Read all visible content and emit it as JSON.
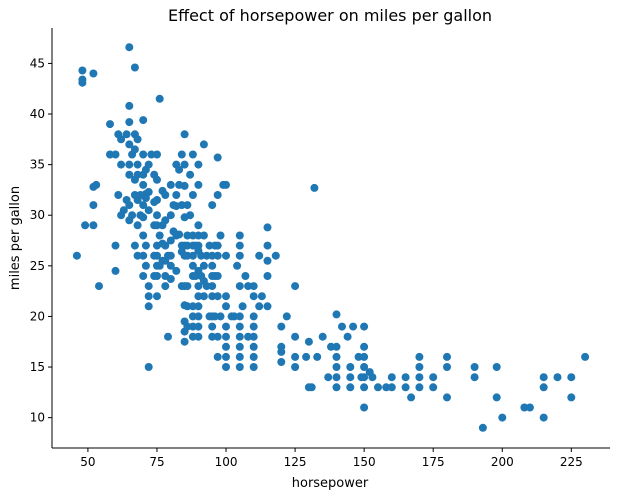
{
  "chart_data": {
    "type": "scatter",
    "title": "Effect of horsepower on miles per gallon",
    "xlabel": "horsepower",
    "ylabel": "miles per gallon",
    "xlim": [
      37,
      239
    ],
    "ylim": [
      7,
      48.5
    ],
    "xticks": [
      50,
      75,
      100,
      125,
      150,
      175,
      200,
      225
    ],
    "yticks": [
      10,
      15,
      20,
      25,
      30,
      35,
      40,
      45
    ],
    "grid": false,
    "color": "#1f77b4",
    "series": [
      {
        "points": [
          [
            46,
            26
          ],
          [
            48,
            44.3
          ],
          [
            48,
            43.4
          ],
          [
            48,
            43.1
          ],
          [
            49,
            29
          ],
          [
            52,
            44
          ],
          [
            52,
            29
          ],
          [
            52,
            31
          ],
          [
            52,
            32.8
          ],
          [
            53,
            33
          ],
          [
            54,
            23
          ],
          [
            58,
            36
          ],
          [
            58,
            39
          ],
          [
            60,
            36
          ],
          [
            60,
            27
          ],
          [
            60,
            24.5
          ],
          [
            61,
            38
          ],
          [
            61,
            32
          ],
          [
            62,
            37.5
          ],
          [
            62,
            35
          ],
          [
            62,
            30
          ],
          [
            63,
            30.5
          ],
          [
            64,
            31.5
          ],
          [
            64,
            38
          ],
          [
            65,
            46.6
          ],
          [
            65,
            40.8
          ],
          [
            65,
            39.2
          ],
          [
            65,
            37
          ],
          [
            65,
            35
          ],
          [
            65,
            31
          ],
          [
            65,
            29.5
          ],
          [
            65,
            34
          ],
          [
            66,
            30
          ],
          [
            66,
            36
          ],
          [
            67,
            44.6
          ],
          [
            67,
            38
          ],
          [
            67,
            33.5
          ],
          [
            67,
            32
          ],
          [
            67,
            36.5
          ],
          [
            67,
            27
          ],
          [
            68,
            37.5
          ],
          [
            68,
            35
          ],
          [
            68,
            34
          ],
          [
            68,
            31.5
          ],
          [
            68,
            29
          ],
          [
            68,
            26
          ],
          [
            69,
            32
          ],
          [
            69,
            30
          ],
          [
            70,
            39.4
          ],
          [
            70,
            36
          ],
          [
            70,
            34
          ],
          [
            70,
            33
          ],
          [
            70,
            31
          ],
          [
            70,
            29.8
          ],
          [
            70,
            28
          ],
          [
            70,
            26
          ],
          [
            70,
            24
          ],
          [
            71,
            34.5
          ],
          [
            71,
            31.7
          ],
          [
            71,
            27
          ],
          [
            71,
            25
          ],
          [
            71,
            32.1
          ],
          [
            72,
            35
          ],
          [
            72,
            32.3
          ],
          [
            72,
            30.5
          ],
          [
            72,
            23
          ],
          [
            72,
            22
          ],
          [
            72,
            21
          ],
          [
            72,
            15
          ],
          [
            73,
            36
          ],
          [
            74,
            34
          ],
          [
            74,
            31.3
          ],
          [
            74,
            29
          ],
          [
            74,
            26
          ],
          [
            74,
            24
          ],
          [
            75,
            36
          ],
          [
            75,
            33.5
          ],
          [
            75,
            31.5
          ],
          [
            75,
            30
          ],
          [
            75,
            29
          ],
          [
            75,
            27
          ],
          [
            75,
            26
          ],
          [
            75,
            25
          ],
          [
            75,
            24
          ],
          [
            75,
            22
          ],
          [
            76,
            41.5
          ],
          [
            76,
            28
          ],
          [
            76,
            25
          ],
          [
            77,
            32.4
          ],
          [
            77,
            29
          ],
          [
            77,
            27.2
          ],
          [
            77,
            25.5
          ],
          [
            78,
            32
          ],
          [
            78,
            29.5
          ],
          [
            78,
            27
          ],
          [
            78,
            25.5
          ],
          [
            78,
            24
          ],
          [
            78,
            23
          ],
          [
            79,
            26
          ],
          [
            79,
            18
          ],
          [
            80,
            33
          ],
          [
            80,
            30
          ],
          [
            80,
            27.5
          ],
          [
            80,
            26
          ],
          [
            80,
            25
          ],
          [
            80,
            23.7
          ],
          [
            81,
            31
          ],
          [
            81,
            28.4
          ],
          [
            82,
            35
          ],
          [
            82,
            32
          ],
          [
            82,
            30.9
          ],
          [
            82,
            28
          ],
          [
            82,
            24.5
          ],
          [
            83,
            34.5
          ],
          [
            83,
            33
          ],
          [
            83,
            28.1
          ],
          [
            84,
            36
          ],
          [
            84,
            31
          ],
          [
            84,
            27
          ],
          [
            84,
            26.4
          ],
          [
            84,
            23
          ],
          [
            85,
            38
          ],
          [
            85,
            35
          ],
          [
            85,
            32.9
          ],
          [
            85,
            29.8
          ],
          [
            85,
            27
          ],
          [
            85,
            26
          ],
          [
            85,
            23
          ],
          [
            85,
            21.1
          ],
          [
            85,
            19.5
          ],
          [
            85,
            18.5
          ],
          [
            85,
            17.5
          ],
          [
            86,
            31
          ],
          [
            86,
            28
          ],
          [
            86,
            27
          ],
          [
            86,
            26
          ],
          [
            86,
            23
          ],
          [
            86,
            21
          ],
          [
            86,
            19
          ],
          [
            87,
            34
          ],
          [
            87,
            30
          ],
          [
            88,
            36
          ],
          [
            88,
            32
          ],
          [
            88,
            28
          ],
          [
            88,
            27
          ],
          [
            88,
            26
          ],
          [
            88,
            25
          ],
          [
            88,
            24
          ],
          [
            88,
            21
          ],
          [
            88,
            20
          ],
          [
            88,
            19
          ],
          [
            88,
            18
          ],
          [
            89,
            27
          ],
          [
            89,
            24
          ],
          [
            90,
            35
          ],
          [
            90,
            33
          ],
          [
            90,
            29
          ],
          [
            90,
            28
          ],
          [
            90,
            27
          ],
          [
            90,
            26.5
          ],
          [
            90,
            24.5
          ],
          [
            90,
            23
          ],
          [
            90,
            22
          ],
          [
            90,
            21
          ],
          [
            90,
            20
          ],
          [
            90,
            19
          ],
          [
            90,
            18
          ],
          [
            91,
            26
          ],
          [
            91,
            24
          ],
          [
            92,
            37
          ],
          [
            92,
            28
          ],
          [
            92,
            25
          ],
          [
            92,
            23.5
          ],
          [
            92,
            22
          ],
          [
            93,
            26
          ],
          [
            93,
            23
          ],
          [
            94,
            27
          ],
          [
            94,
            20
          ],
          [
            95,
            31
          ],
          [
            95,
            26
          ],
          [
            95,
            25
          ],
          [
            95,
            24
          ],
          [
            95,
            23
          ],
          [
            95,
            22
          ],
          [
            95,
            20
          ],
          [
            95,
            19
          ],
          [
            95,
            18
          ],
          [
            96,
            27
          ],
          [
            96,
            24
          ],
          [
            96,
            20
          ],
          [
            97,
            35.7
          ],
          [
            97,
            32
          ],
          [
            97,
            27
          ],
          [
            97,
            26
          ],
          [
            97,
            24
          ],
          [
            97,
            22
          ],
          [
            97,
            18
          ],
          [
            97,
            16
          ],
          [
            98,
            28
          ],
          [
            98,
            20
          ],
          [
            99,
            33
          ],
          [
            100,
            33
          ],
          [
            100,
            26
          ],
          [
            100,
            22
          ],
          [
            100,
            21
          ],
          [
            100,
            19
          ],
          [
            100,
            18
          ],
          [
            100,
            17
          ],
          [
            100,
            16
          ],
          [
            100,
            15
          ],
          [
            102,
            20
          ],
          [
            103,
            20
          ],
          [
            104,
            25
          ],
          [
            105,
            28
          ],
          [
            105,
            27
          ],
          [
            105,
            26
          ],
          [
            105,
            23
          ],
          [
            105,
            20
          ],
          [
            105,
            19
          ],
          [
            105,
            18
          ],
          [
            105,
            17
          ],
          [
            105,
            16
          ],
          [
            105,
            15
          ],
          [
            106,
            21
          ],
          [
            107,
            24
          ],
          [
            108,
            23
          ],
          [
            108,
            18
          ],
          [
            110,
            23
          ],
          [
            110,
            22
          ],
          [
            110,
            20
          ],
          [
            110,
            19
          ],
          [
            110,
            18
          ],
          [
            110,
            17
          ],
          [
            110,
            16
          ],
          [
            110,
            15
          ],
          [
            112,
            26
          ],
          [
            112,
            21
          ],
          [
            113,
            22
          ],
          [
            115,
            28.8
          ],
          [
            115,
            27
          ],
          [
            115,
            25.5
          ],
          [
            115,
            24
          ],
          [
            115,
            21
          ],
          [
            118,
            26
          ],
          [
            120,
            19
          ],
          [
            120,
            17
          ],
          [
            120,
            16.5
          ],
          [
            120,
            15.5
          ],
          [
            122,
            20
          ],
          [
            125,
            23
          ],
          [
            125,
            18
          ],
          [
            125,
            16
          ],
          [
            125,
            15
          ],
          [
            129,
            16
          ],
          [
            130,
            17.5
          ],
          [
            130,
            13
          ],
          [
            131,
            13
          ],
          [
            132,
            32.7
          ],
          [
            133,
            16
          ],
          [
            135,
            18
          ],
          [
            137,
            14
          ],
          [
            138,
            17
          ],
          [
            140,
            20.2
          ],
          [
            140,
            17
          ],
          [
            140,
            16
          ],
          [
            140,
            15
          ],
          [
            140,
            14
          ],
          [
            140,
            13
          ],
          [
            142,
            19
          ],
          [
            144,
            18
          ],
          [
            145,
            15
          ],
          [
            145,
            14
          ],
          [
            145,
            13
          ],
          [
            146,
            19
          ],
          [
            148,
            16
          ],
          [
            149,
            14
          ],
          [
            150,
            19
          ],
          [
            150,
            17
          ],
          [
            150,
            16
          ],
          [
            150,
            15
          ],
          [
            150,
            14
          ],
          [
            150,
            13
          ],
          [
            150,
            11
          ],
          [
            152,
            14.5
          ],
          [
            153,
            14
          ],
          [
            155,
            13
          ],
          [
            158,
            13
          ],
          [
            160,
            14
          ],
          [
            160,
            13
          ],
          [
            165,
            14
          ],
          [
            165,
            13
          ],
          [
            167,
            12
          ],
          [
            170,
            16
          ],
          [
            170,
            15
          ],
          [
            170,
            14
          ],
          [
            170,
            13
          ],
          [
            175,
            13
          ],
          [
            175,
            14
          ],
          [
            180,
            16
          ],
          [
            180,
            15
          ],
          [
            180,
            12
          ],
          [
            190,
            15
          ],
          [
            190,
            14
          ],
          [
            193,
            9
          ],
          [
            198,
            15
          ],
          [
            198,
            12
          ],
          [
            200,
            10
          ],
          [
            208,
            11
          ],
          [
            210,
            11
          ],
          [
            215,
            14
          ],
          [
            215,
            13
          ],
          [
            215,
            10
          ],
          [
            220,
            14
          ],
          [
            225,
            14
          ],
          [
            225,
            12
          ],
          [
            230,
            16
          ]
        ]
      }
    ]
  }
}
